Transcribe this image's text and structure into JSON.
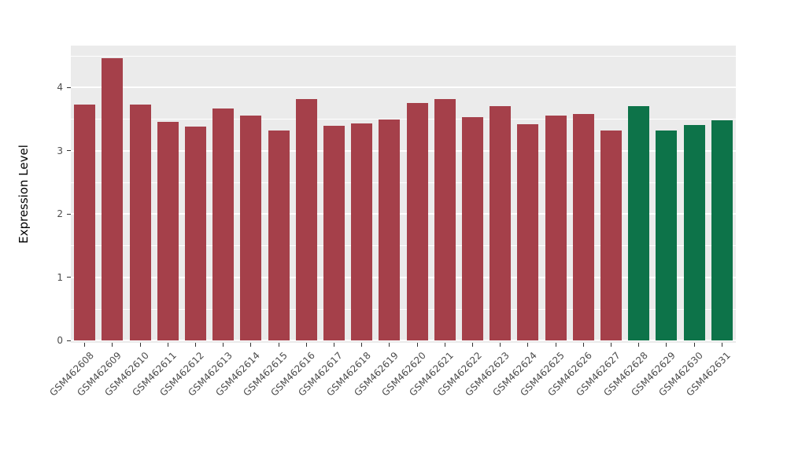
{
  "colors": {
    "red_group": "#A5404A",
    "green_group": "#0D7349",
    "panel_bg": "#EBEBEB",
    "grid_major": "#FFFFFF",
    "grid_minor": "#FFFFFF",
    "tick_text": "#4D4D4D",
    "tick_mark": "#333333",
    "axis_title_text": "#000000"
  },
  "chart_data": {
    "type": "bar",
    "title": "",
    "xlabel": "",
    "ylabel": "Expression Level",
    "ylim": [
      0,
      4.66
    ],
    "yticks": [
      0,
      1,
      2,
      3,
      4
    ],
    "grid": "major and minor white horizontal gridlines on gray panel",
    "legend": "none",
    "categories": [
      "GSM462608",
      "GSM462609",
      "GSM462610",
      "GSM462611",
      "GSM462612",
      "GSM462613",
      "GSM462614",
      "GSM462615",
      "GSM462616",
      "GSM462617",
      "GSM462618",
      "GSM462619",
      "GSM462620",
      "GSM462621",
      "GSM462622",
      "GSM462623",
      "GSM462624",
      "GSM462625",
      "GSM462626",
      "GSM462627",
      "GSM462628",
      "GSM462629",
      "GSM462630",
      "GSM462631"
    ],
    "values": [
      3.73,
      4.46,
      3.73,
      3.45,
      3.38,
      3.66,
      3.55,
      3.32,
      3.82,
      3.39,
      3.43,
      3.49,
      3.75,
      3.81,
      3.53,
      3.7,
      3.42,
      3.56,
      3.58,
      3.32,
      3.7,
      3.32,
      3.4,
      3.48
    ],
    "groups": [
      "red",
      "red",
      "red",
      "red",
      "red",
      "red",
      "red",
      "red",
      "red",
      "red",
      "red",
      "red",
      "red",
      "red",
      "red",
      "red",
      "red",
      "red",
      "red",
      "red",
      "green",
      "green",
      "green",
      "green"
    ]
  }
}
